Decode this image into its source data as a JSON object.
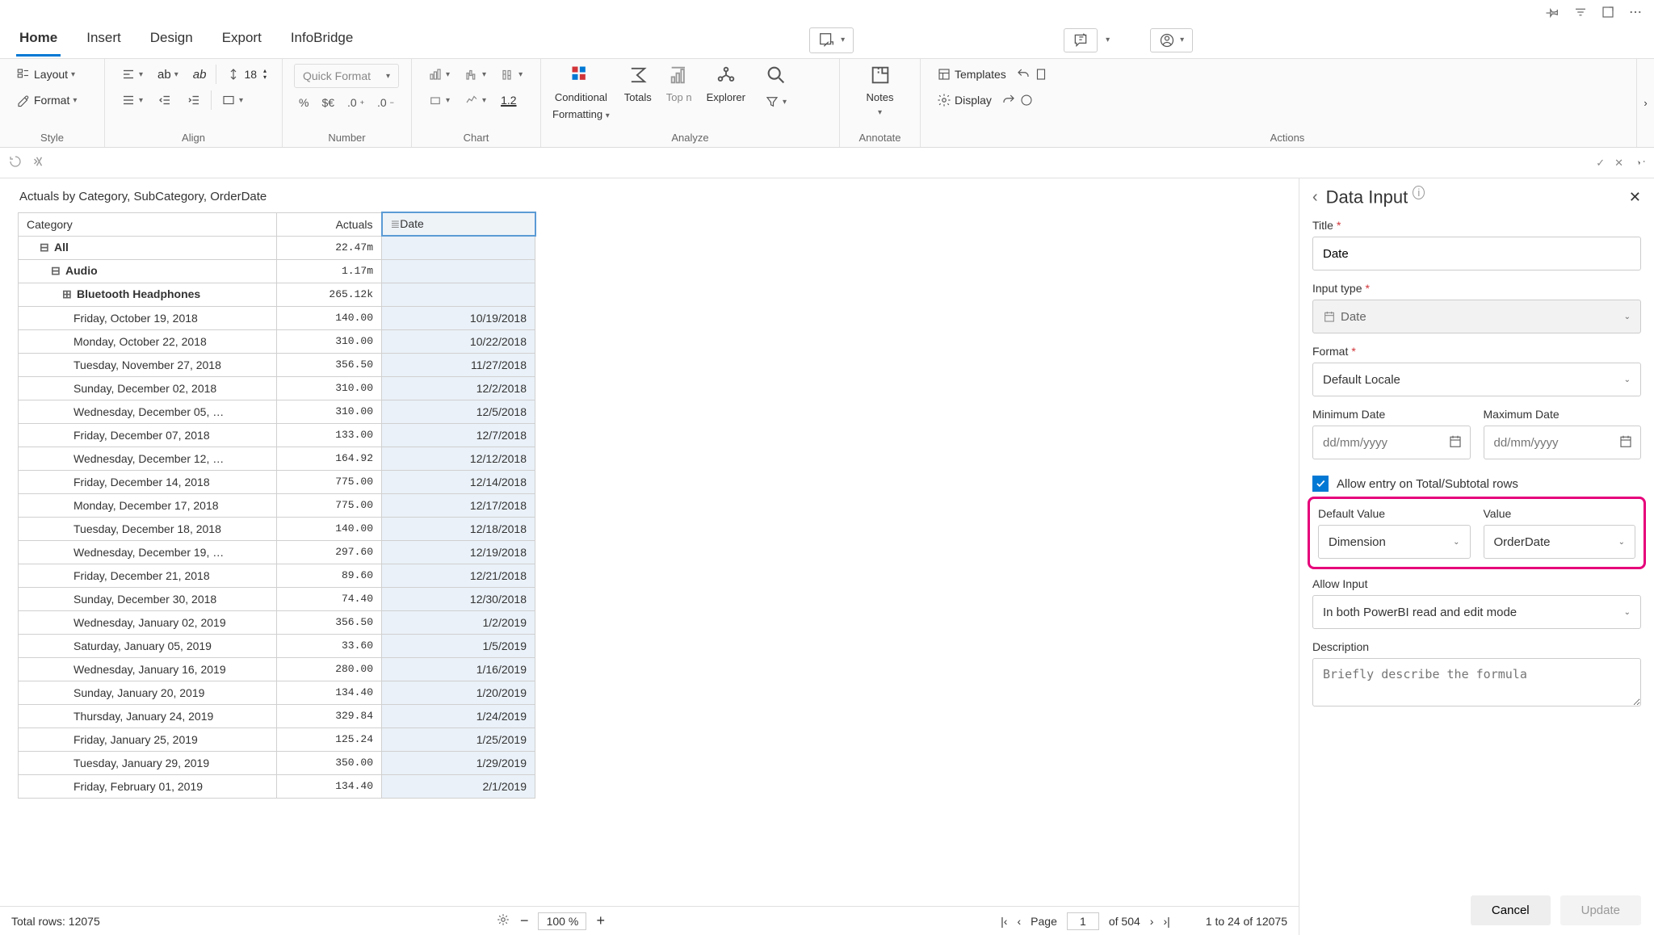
{
  "tabs": {
    "list": [
      "Home",
      "Insert",
      "Design",
      "Export",
      "InfoBridge"
    ],
    "active": "Home"
  },
  "ribbon": {
    "groups": [
      "Style",
      "Align",
      "Number",
      "Chart",
      "Analyze",
      "Annotate",
      "Actions"
    ],
    "style": {
      "layout": "Layout",
      "format": "Format"
    },
    "align": {
      "fontsize": "18"
    },
    "number": {
      "quick_format": "Quick Format",
      "pct": "%",
      "cur": "$€",
      "d0": ".0",
      "d00": ".0",
      "underline": "1.2"
    },
    "analyze": {
      "conditional": "Conditional",
      "formatting": "Formatting",
      "totals": "Totals",
      "topn": "Top n",
      "explorer": "Explorer"
    },
    "annotate": {
      "notes": "Notes"
    },
    "actions": {
      "templates": "Templates",
      "display": "Display"
    }
  },
  "crumb": "Actuals by Category, SubCategory, OrderDate",
  "table": {
    "headers": {
      "category": "Category",
      "actuals": "Actuals",
      "date": "Date"
    },
    "rows": [
      {
        "lvl": 0,
        "cat": "All",
        "act": "22.47m",
        "date": "",
        "exp": "minus"
      },
      {
        "lvl": 1,
        "cat": "Audio",
        "act": "1.17m",
        "date": "",
        "exp": "minus"
      },
      {
        "lvl": 2,
        "cat": "Bluetooth Headphones",
        "act": "265.12k",
        "date": "",
        "exp": "plus"
      },
      {
        "lvl": 3,
        "cat": "Friday, October 19, 2018",
        "act": "140.00",
        "date": "10/19/2018"
      },
      {
        "lvl": 3,
        "cat": "Monday, October 22, 2018",
        "act": "310.00",
        "date": "10/22/2018"
      },
      {
        "lvl": 3,
        "cat": "Tuesday, November 27, 2018",
        "act": "356.50",
        "date": "11/27/2018"
      },
      {
        "lvl": 3,
        "cat": "Sunday, December 02, 2018",
        "act": "310.00",
        "date": "12/2/2018"
      },
      {
        "lvl": 3,
        "cat": "Wednesday, December 05, …",
        "act": "310.00",
        "date": "12/5/2018"
      },
      {
        "lvl": 3,
        "cat": "Friday, December 07, 2018",
        "act": "133.00",
        "date": "12/7/2018"
      },
      {
        "lvl": 3,
        "cat": "Wednesday, December 12, …",
        "act": "164.92",
        "date": "12/12/2018"
      },
      {
        "lvl": 3,
        "cat": "Friday, December 14, 2018",
        "act": "775.00",
        "date": "12/14/2018"
      },
      {
        "lvl": 3,
        "cat": "Monday, December 17, 2018",
        "act": "775.00",
        "date": "12/17/2018"
      },
      {
        "lvl": 3,
        "cat": "Tuesday, December 18, 2018",
        "act": "140.00",
        "date": "12/18/2018"
      },
      {
        "lvl": 3,
        "cat": "Wednesday, December 19, …",
        "act": "297.60",
        "date": "12/19/2018"
      },
      {
        "lvl": 3,
        "cat": "Friday, December 21, 2018",
        "act": "89.60",
        "date": "12/21/2018"
      },
      {
        "lvl": 3,
        "cat": "Sunday, December 30, 2018",
        "act": "74.40",
        "date": "12/30/2018"
      },
      {
        "lvl": 3,
        "cat": "Wednesday, January 02, 2019",
        "act": "356.50",
        "date": "1/2/2019"
      },
      {
        "lvl": 3,
        "cat": "Saturday, January 05, 2019",
        "act": "33.60",
        "date": "1/5/2019"
      },
      {
        "lvl": 3,
        "cat": "Wednesday, January 16, 2019",
        "act": "280.00",
        "date": "1/16/2019"
      },
      {
        "lvl": 3,
        "cat": "Sunday, January 20, 2019",
        "act": "134.40",
        "date": "1/20/2019"
      },
      {
        "lvl": 3,
        "cat": "Thursday, January 24, 2019",
        "act": "329.84",
        "date": "1/24/2019"
      },
      {
        "lvl": 3,
        "cat": "Friday, January 25, 2019",
        "act": "125.24",
        "date": "1/25/2019"
      },
      {
        "lvl": 3,
        "cat": "Tuesday, January 29, 2019",
        "act": "350.00",
        "date": "1/29/2019"
      },
      {
        "lvl": 3,
        "cat": "Friday, February 01, 2019",
        "act": "134.40",
        "date": "2/1/2019"
      }
    ]
  },
  "status": {
    "total_rows_label": "Total rows: 12075",
    "zoom": "100 %",
    "page_label": "Page",
    "page_num": "1",
    "page_total": "of 504",
    "range": "1 to 24 of 12075"
  },
  "panel": {
    "heading": "Data Input",
    "title_label": "Title",
    "title_value": "Date",
    "input_type_label": "Input type",
    "input_type_value": "Date",
    "format_label": "Format",
    "format_value": "Default Locale",
    "min_label": "Minimum Date",
    "max_label": "Maximum Date",
    "date_placeholder": "dd/mm/yyyy",
    "allow_total": "Allow entry on Total/Subtotal rows",
    "default_value_label": "Default Value",
    "default_value_value": "Dimension",
    "value_label": "Value",
    "value_value": "OrderDate",
    "allow_input_label": "Allow Input",
    "allow_input_value": "In both PowerBI read and edit mode",
    "desc_label": "Description",
    "desc_placeholder": "Briefly describe the formula",
    "cancel": "Cancel",
    "update": "Update"
  }
}
